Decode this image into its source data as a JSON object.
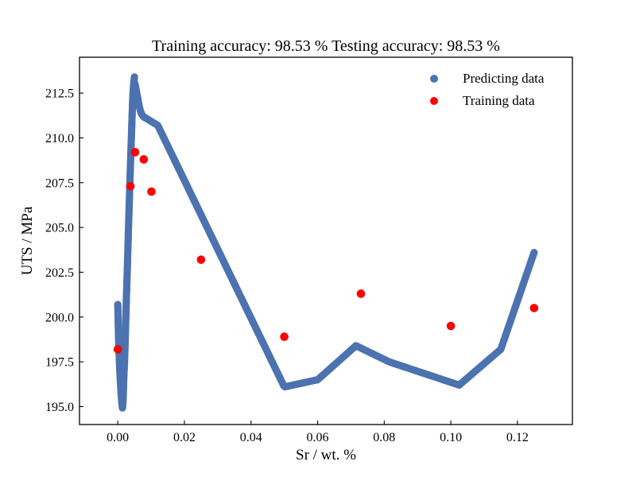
{
  "chart_data": {
    "type": "scatter",
    "title": "Training accuracy: 98.53 %  Testing accuracy: 98.53 %",
    "xlabel": "Sr / wt. %",
    "ylabel": "UTS / MPa",
    "xlim": [
      -0.0115,
      0.1365
    ],
    "ylim": [
      194.0,
      214.5
    ],
    "x_ticks": [
      0.0,
      0.02,
      0.04,
      0.06,
      0.08,
      0.1,
      0.12
    ],
    "x_tick_labels": [
      "0.00",
      "0.02",
      "0.04",
      "0.06",
      "0.08",
      "0.10",
      "0.12"
    ],
    "y_ticks": [
      195.0,
      197.5,
      200.0,
      202.5,
      205.0,
      207.5,
      210.0,
      212.5
    ],
    "y_tick_labels": [
      "195.0",
      "197.5",
      "200.0",
      "202.5",
      "205.0",
      "207.5",
      "210.0",
      "212.5"
    ],
    "grid": false,
    "legend_position": "top-right",
    "series": [
      {
        "name": "Predicting data",
        "color": "#4c72b0",
        "curve_segments": [
          {
            "x": [
              0.0,
              0.0002,
              0.0004,
              0.0006,
              0.0008,
              0.001,
              0.0012,
              0.0014,
              0.0016,
              0.0018,
              0.002,
              0.0022,
              0.0024,
              0.0026,
              0.0028,
              0.003,
              0.0032,
              0.0034,
              0.0036,
              0.0038,
              0.004,
              0.0042,
              0.0044,
              0.0046,
              0.0048,
              0.005
            ],
            "y": [
              200.7,
              199.0,
              197.9,
              197.0,
              196.3,
              195.7,
              195.2,
              194.9,
              195.4,
              196.6,
              197.4,
              198.5,
              199.9,
              201.2,
              202.3,
              203.6,
              204.9,
              206.1,
              207.3,
              208.5,
              209.6,
              210.7,
              211.8,
              212.6,
              213.1,
              213.4
            ]
          },
          {
            "x": [
              0.0052,
              0.0056,
              0.006,
              0.0064,
              0.0068,
              0.0072,
              0.0076,
              0.008
            ],
            "y": [
              213.0,
              212.6,
              212.2,
              211.8,
              211.5,
              211.3,
              211.2,
              211.15
            ]
          },
          {
            "x": [
              0.008,
              0.012,
              0.05,
              0.06,
              0.0715,
              0.0815,
              0.1025,
              0.115,
              0.125
            ],
            "y": [
              211.15,
              210.7,
              196.1,
              196.5,
              198.4,
              197.5,
              196.2,
              198.2,
              203.6
            ]
          }
        ]
      },
      {
        "name": "Training data",
        "color": "#ff0000",
        "points": [
          {
            "x": 0.0,
            "y": 198.2
          },
          {
            "x": 0.0038,
            "y": 207.3
          },
          {
            "x": 0.0052,
            "y": 209.2
          },
          {
            "x": 0.0078,
            "y": 208.8
          },
          {
            "x": 0.0101,
            "y": 207.0
          },
          {
            "x": 0.025,
            "y": 203.2
          },
          {
            "x": 0.05,
            "y": 198.9
          },
          {
            "x": 0.073,
            "y": 201.3
          },
          {
            "x": 0.1,
            "y": 199.5
          },
          {
            "x": 0.125,
            "y": 200.5
          }
        ]
      }
    ]
  }
}
